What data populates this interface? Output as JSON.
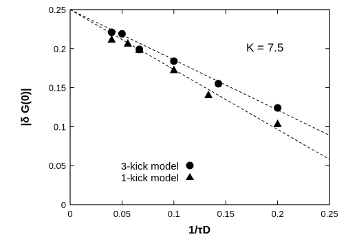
{
  "chart_data": {
    "type": "scatter",
    "xlabel": "1/τD",
    "ylabel": "|δ G(0)|",
    "xlim": [
      0,
      0.25
    ],
    "ylim": [
      0,
      0.25
    ],
    "xticks": [
      "0",
      "0.05",
      "0.1",
      "0.15",
      "0.2",
      "0.25"
    ],
    "yticks": [
      "0",
      "0.05",
      "0.1",
      "0.15",
      "0.2",
      "0.25"
    ],
    "annotation": "K = 7.5",
    "legend_position": "bottom-left",
    "series": [
      {
        "name": "3-kick model",
        "marker": "circle",
        "x": [
          0.04,
          0.05,
          0.0667,
          0.1,
          0.1429,
          0.2
        ],
        "y": [
          0.221,
          0.219,
          0.199,
          0.184,
          0.155,
          0.124
        ],
        "fit": {
          "style": "dashed",
          "x": [
            0,
            0.25
          ],
          "y": [
            0.25,
            0.089
          ]
        }
      },
      {
        "name": "1-kick model",
        "marker": "triangle",
        "x": [
          0.04,
          0.0556,
          0.0667,
          0.1,
          0.1333,
          0.2
        ],
        "y": [
          0.212,
          0.207,
          0.199,
          0.173,
          0.141,
          0.104
        ],
        "fit": {
          "style": "dashed",
          "x": [
            0,
            0.25
          ],
          "y": [
            0.25,
            0.058
          ]
        }
      }
    ]
  }
}
